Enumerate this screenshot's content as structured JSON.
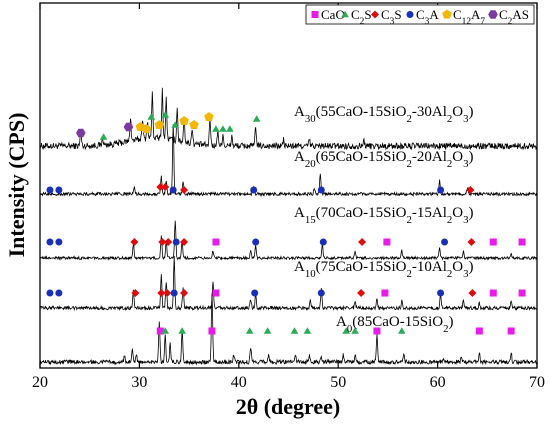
{
  "chart_data": {
    "type": "line",
    "title": "",
    "xlabel": "2θ (degree)",
    "ylabel": "Intensity (CPS)",
    "xlim": [
      20,
      70
    ],
    "xticks": [
      20,
      30,
      40,
      50,
      60,
      70
    ],
    "grid": false,
    "legend_position": "top-right",
    "legend": [
      {
        "name": "CaO",
        "marker": "square",
        "color": "#e81ce8"
      },
      {
        "name": "C2S",
        "marker": "triangle",
        "color": "#2bab56"
      },
      {
        "name": "C3S",
        "marker": "diamond",
        "color": "#e00c0c"
      },
      {
        "name": "C3A",
        "marker": "circle",
        "color": "#1a2fb8"
      },
      {
        "name": "C12A7",
        "marker": "pentagon",
        "color": "#f2b705"
      },
      {
        "name": "C2AS",
        "marker": "hexagon",
        "color": "#7a3a9e"
      }
    ],
    "series": [
      {
        "name": "A30(55CaO-15SiO2-30Al2O3)",
        "peaks": [
          [
            24.1,
            8
          ],
          [
            26.3,
            4
          ],
          [
            29.1,
            12
          ],
          [
            30.3,
            10
          ],
          [
            30.8,
            9
          ],
          [
            31.3,
            22
          ],
          [
            32.3,
            24
          ],
          [
            32.7,
            20
          ],
          [
            33.8,
            16
          ],
          [
            34.5,
            12
          ],
          [
            35.3,
            8
          ],
          [
            37.1,
            14
          ],
          [
            37.9,
            8
          ],
          [
            38.4,
            6
          ],
          [
            39.3,
            5
          ],
          [
            41.7,
            10
          ],
          [
            44.5,
            3
          ],
          [
            47.1,
            3
          ],
          [
            52.6,
            3
          ]
        ],
        "markers": [
          {
            "phase": "C2AS",
            "x": 24.1
          },
          {
            "phase": "C2S",
            "x": 26.4
          },
          {
            "phase": "C2AS",
            "x": 28.9
          },
          {
            "phase": "C12A7",
            "x": 30.1
          },
          {
            "phase": "C12A7",
            "x": 30.7
          },
          {
            "phase": "C2S",
            "x": 31.2
          },
          {
            "phase": "C12A7",
            "x": 32.0
          },
          {
            "phase": "C2S",
            "x": 32.6
          },
          {
            "phase": "C2S",
            "x": 33.6
          },
          {
            "phase": "C12A7",
            "x": 34.5
          },
          {
            "phase": "C12A7",
            "x": 35.5
          },
          {
            "phase": "C12A7",
            "x": 37.0
          },
          {
            "phase": "C2S",
            "x": 37.7
          },
          {
            "phase": "C2S",
            "x": 38.4
          },
          {
            "phase": "C2S",
            "x": 39.1
          },
          {
            "phase": "C2S",
            "x": 41.8
          }
        ]
      },
      {
        "name": "A20(65CaO-15SiO2-20Al2O3)",
        "peaks": [
          [
            29.5,
            3
          ],
          [
            32.2,
            8
          ],
          [
            32.7,
            6
          ],
          [
            33.4,
            32
          ],
          [
            34.4,
            5
          ],
          [
            41.5,
            4
          ],
          [
            47.6,
            3
          ],
          [
            48.2,
            9
          ],
          [
            60.2,
            6
          ],
          [
            63.0,
            3
          ]
        ],
        "markers": [
          {
            "phase": "C3A",
            "x": 21.0
          },
          {
            "phase": "C3A",
            "x": 21.9
          },
          {
            "phase": "C3S",
            "x": 32.1
          },
          {
            "phase": "C3S",
            "x": 32.6
          },
          {
            "phase": "C3A",
            "x": 33.4
          },
          {
            "phase": "C3S",
            "x": 34.5
          },
          {
            "phase": "C3A",
            "x": 41.5
          },
          {
            "phase": "C3A",
            "x": 48.3
          },
          {
            "phase": "C3A",
            "x": 60.3
          },
          {
            "phase": "C3S",
            "x": 63.3
          }
        ]
      },
      {
        "name": "A15(70CaO-15SiO2-15Al2O3)",
        "peaks": [
          [
            29.4,
            6
          ],
          [
            32.2,
            9
          ],
          [
            32.7,
            7
          ],
          [
            33.6,
            16
          ],
          [
            34.3,
            7
          ],
          [
            37.4,
            3
          ],
          [
            41.2,
            3
          ],
          [
            41.7,
            5
          ],
          [
            48.4,
            6
          ],
          [
            51.7,
            3
          ],
          [
            56.4,
            3
          ],
          [
            60.2,
            4
          ],
          [
            62.6,
            3
          ],
          [
            67.4,
            2
          ]
        ],
        "markers": [
          {
            "phase": "C3A",
            "x": 21.0
          },
          {
            "phase": "C3A",
            "x": 21.9
          },
          {
            "phase": "C3S",
            "x": 29.5
          },
          {
            "phase": "C3S",
            "x": 32.3
          },
          {
            "phase": "C3S",
            "x": 32.9
          },
          {
            "phase": "C3A",
            "x": 33.7
          },
          {
            "phase": "C3S",
            "x": 34.5
          },
          {
            "phase": "CaO",
            "x": 37.7
          },
          {
            "phase": "C3A",
            "x": 41.7
          },
          {
            "phase": "C3A",
            "x": 48.5
          },
          {
            "phase": "C3S",
            "x": 52.4
          },
          {
            "phase": "CaO",
            "x": 54.9
          },
          {
            "phase": "C3A",
            "x": 60.7
          },
          {
            "phase": "C3S",
            "x": 63.4
          },
          {
            "phase": "CaO",
            "x": 65.6
          },
          {
            "phase": "CaO",
            "x": 68.5
          }
        ]
      },
      {
        "name": "A10(75CaO-15SiO2-10Al2O3)",
        "peaks": [
          [
            29.4,
            8
          ],
          [
            32.2,
            14
          ],
          [
            32.7,
            11
          ],
          [
            33.5,
            22
          ],
          [
            34.4,
            9
          ],
          [
            37.4,
            12
          ],
          [
            41.2,
            4
          ],
          [
            41.7,
            6
          ],
          [
            47.2,
            3
          ],
          [
            48.3,
            8
          ],
          [
            51.7,
            3
          ],
          [
            53.9,
            4
          ],
          [
            56.4,
            3
          ],
          [
            60.3,
            6
          ],
          [
            62.6,
            3
          ],
          [
            64.2,
            2
          ],
          [
            67.4,
            3
          ]
        ],
        "markers": [
          {
            "phase": "C3A",
            "x": 21.0
          },
          {
            "phase": "C3A",
            "x": 21.9
          },
          {
            "phase": "C3S",
            "x": 29.6
          },
          {
            "phase": "C3S",
            "x": 32.2
          },
          {
            "phase": "C3S",
            "x": 32.8
          },
          {
            "phase": "C3A",
            "x": 33.5
          },
          {
            "phase": "C3S",
            "x": 34.5
          },
          {
            "phase": "CaO",
            "x": 37.7
          },
          {
            "phase": "C3A",
            "x": 41.6
          },
          {
            "phase": "C3A",
            "x": 48.3
          },
          {
            "phase": "C3S",
            "x": 52.3
          },
          {
            "phase": "CaO",
            "x": 54.7
          },
          {
            "phase": "C3A",
            "x": 60.3
          },
          {
            "phase": "C3S",
            "x": 63.5
          },
          {
            "phase": "CaO",
            "x": 65.6
          },
          {
            "phase": "CaO",
            "x": 68.5
          }
        ]
      },
      {
        "name": "A0(85CaO-15SiO2)",
        "peaks": [
          [
            28.5,
            3
          ],
          [
            29.3,
            5
          ],
          [
            29.7,
            3
          ],
          [
            32.0,
            18
          ],
          [
            32.6,
            12
          ],
          [
            33.1,
            8
          ],
          [
            34.3,
            14
          ],
          [
            37.3,
            30
          ],
          [
            39.5,
            3
          ],
          [
            41.2,
            6
          ],
          [
            43.0,
            3
          ],
          [
            45.7,
            3
          ],
          [
            47.1,
            3
          ],
          [
            48.3,
            2
          ],
          [
            50.5,
            3
          ],
          [
            51.7,
            3
          ],
          [
            53.9,
            12
          ],
          [
            56.6,
            3
          ],
          [
            60.6,
            2
          ],
          [
            62.4,
            2
          ],
          [
            64.2,
            4
          ],
          [
            67.4,
            4
          ]
        ],
        "markers": [
          {
            "phase": "CaO",
            "x": 32.1
          },
          {
            "phase": "C2S",
            "x": 32.6
          },
          {
            "phase": "C2S",
            "x": 34.3
          },
          {
            "phase": "CaO",
            "x": 37.3
          },
          {
            "phase": "C2S",
            "x": 41.1
          },
          {
            "phase": "C2S",
            "x": 42.9
          },
          {
            "phase": "C2S",
            "x": 45.6
          },
          {
            "phase": "C2S",
            "x": 46.9
          },
          {
            "phase": "C2S",
            "x": 50.8
          },
          {
            "phase": "C2S",
            "x": 51.7
          },
          {
            "phase": "CaO",
            "x": 53.9
          },
          {
            "phase": "C2S",
            "x": 56.4
          },
          {
            "phase": "CaO",
            "x": 64.2
          },
          {
            "phase": "CaO",
            "x": 67.4
          }
        ]
      }
    ]
  }
}
